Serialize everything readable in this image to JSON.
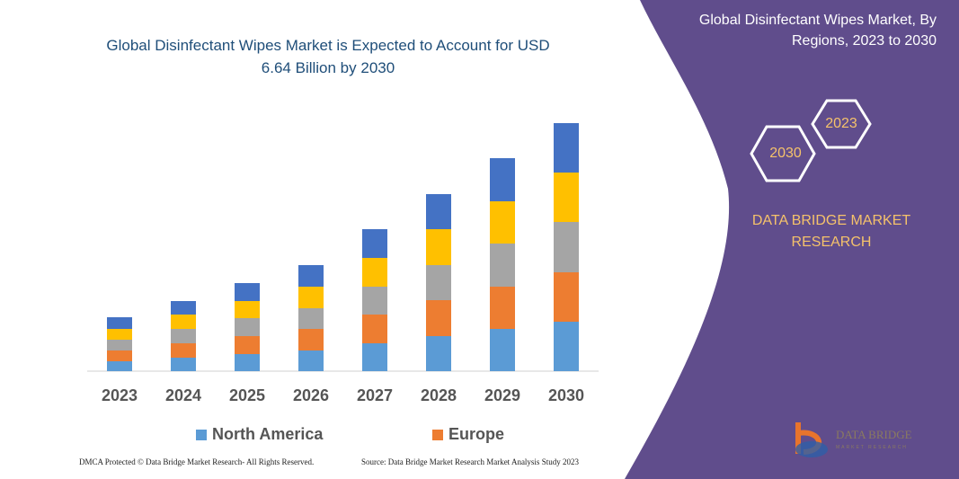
{
  "chart_data": {
    "type": "stacked-bar",
    "title": "Global Disinfectant Wipes Market is Expected to Account for USD 6.64 Billion by 2030",
    "categories": [
      "2023",
      "2024",
      "2025",
      "2026",
      "2027",
      "2028",
      "2029",
      "2030"
    ],
    "series": [
      {
        "name": "North America",
        "color": "#5b9bd5",
        "values": [
          11,
          15,
          19,
          23,
          31,
          39,
          47,
          55
        ]
      },
      {
        "name": "Europe",
        "color": "#ed7d31",
        "values": [
          12,
          16,
          20,
          24,
          32,
          40,
          47,
          55
        ]
      },
      {
        "color": "#a5a5a5",
        "values": [
          12,
          16,
          20,
          23,
          31,
          39,
          48,
          56
        ]
      },
      {
        "color": "#ffc000",
        "values": [
          12,
          16,
          19,
          24,
          32,
          40,
          47,
          55
        ]
      },
      {
        "color": "#4472c4",
        "values": [
          13,
          15,
          20,
          24,
          32,
          39,
          48,
          55
        ]
      }
    ],
    "ylim": [
      0,
      280
    ]
  },
  "panel": {
    "title": "Global Disinfectant Wipes Market, By Regions, 2023 to 2030",
    "hex_a": "2030",
    "hex_b": "2023",
    "brand": "DATA BRIDGE MARKET RESEARCH"
  },
  "footer": {
    "left": "DMCA Protected © Data Bridge Market Research- All Rights Reserved.",
    "right": "Source: Data Bridge Market Research Market Analysis Study 2023"
  },
  "logo": {
    "name": "DATA BRIDGE",
    "tagline": "MARKET RESEARCH"
  }
}
